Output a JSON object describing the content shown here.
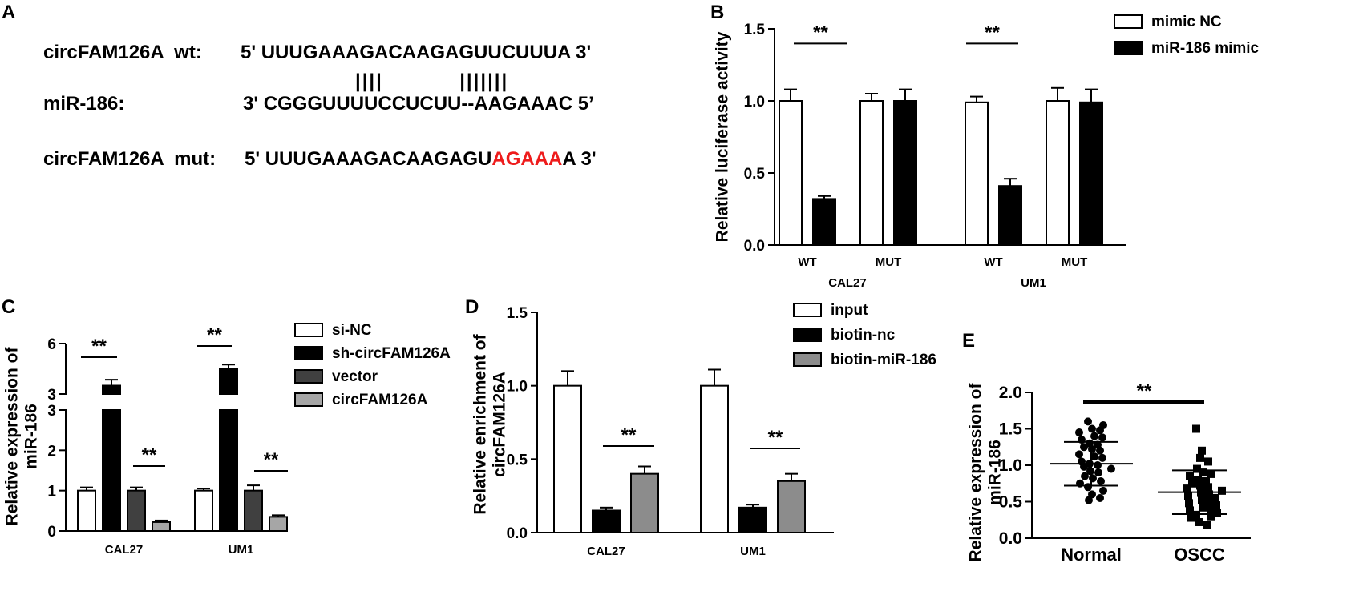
{
  "panels": {
    "a": {
      "letter": "A",
      "rows": [
        {
          "label": "circFAM126A  wt:",
          "seq_pre": "5' UUUGAAAGACAAGAGUUCUUUA 3'",
          "seq_red": "",
          "seq_post": ""
        },
        {
          "label": "miR-186:",
          "seq_pre": "3' CGGGUUUUCCUCUU--AAGAAAC 5’",
          "seq_red": "",
          "seq_post": ""
        },
        {
          "label": "circFAM126A  mut:",
          "seq_pre": "5' UUUGAAAGACAAGAGU",
          "seq_red": "AGAAA",
          "seq_post": "A 3'"
        }
      ],
      "pairing_bars": "||||           |||||||",
      "mut_color": "#ee1c1c"
    },
    "b": {
      "letter": "B"
    },
    "c": {
      "letter": "C"
    },
    "d": {
      "letter": "D"
    },
    "e": {
      "letter": "E"
    }
  },
  "chart_data": [
    {
      "id": "B",
      "type": "bar",
      "ylabel": "Relative luciferase activity",
      "ylim": [
        0,
        1.5
      ],
      "yticks": [
        "0.0",
        "0.5",
        "1.0",
        "1.5"
      ],
      "categories": [
        "WT",
        "MUT",
        "WT",
        "MUT"
      ],
      "groups": [
        "CAL27",
        "UM1"
      ],
      "series": [
        {
          "name": "mimic NC",
          "color": "#ffffff",
          "values": [
            1.0,
            1.0,
            0.99,
            1.0
          ],
          "errors": [
            0.08,
            0.05,
            0.04,
            0.09
          ]
        },
        {
          "name": "miR-186 mimic",
          "color": "#000000",
          "values": [
            0.32,
            1.0,
            0.41,
            0.99
          ],
          "errors": [
            0.02,
            0.08,
            0.05,
            0.09
          ]
        }
      ],
      "significance": [
        {
          "label": "**"
        },
        {
          "label": "**"
        }
      ],
      "legend": "top-right"
    },
    {
      "id": "C",
      "type": "bar",
      "ylabel_lines": [
        "Relative expression of",
        "miR-186"
      ],
      "yticks": [
        "0",
        "1",
        "2",
        "3",
        "3",
        "6"
      ],
      "axis_break": [
        3,
        3
      ],
      "groups": [
        "CAL27",
        "UM1"
      ],
      "series": [
        {
          "name": "si-NC",
          "color": "#ffffff",
          "values": [
            1.0,
            1.0
          ],
          "errors": [
            0.08,
            0.05
          ]
        },
        {
          "name": "sh-circFAM126A",
          "color": "#000000",
          "values": [
            3.5,
            4.5
          ],
          "errors": [
            0.35,
            0.25
          ]
        },
        {
          "name": "vector",
          "color": "#404040",
          "values": [
            1.0,
            1.0
          ],
          "errors": [
            0.08,
            0.13
          ]
        },
        {
          "name": "circFAM126A",
          "color": "#a6a6a6",
          "values": [
            0.22,
            0.35
          ],
          "errors": [
            0.04,
            0.04
          ]
        }
      ],
      "significance": [
        {
          "label": "**"
        },
        {
          "label": "**"
        },
        {
          "label": "**"
        },
        {
          "label": "**"
        }
      ],
      "legend": "right"
    },
    {
      "id": "D",
      "type": "bar",
      "ylabel_lines": [
        "Relative enrichment of",
        "circFAM126A"
      ],
      "ylim": [
        0,
        1.5
      ],
      "yticks": [
        "0.0",
        "0.5",
        "1.0",
        "1.5"
      ],
      "groups": [
        "CAL27",
        "UM1"
      ],
      "series": [
        {
          "name": "input",
          "color": "#ffffff",
          "values": [
            1.0,
            1.0
          ],
          "errors": [
            0.1,
            0.11
          ]
        },
        {
          "name": "biotin-nc",
          "color": "#000000",
          "values": [
            0.15,
            0.17
          ],
          "errors": [
            0.02,
            0.02
          ]
        },
        {
          "name": "biotin-miR-186",
          "color": "#8c8c8c",
          "values": [
            0.4,
            0.35
          ],
          "errors": [
            0.05,
            0.05
          ]
        }
      ],
      "significance": [
        {
          "label": "**"
        },
        {
          "label": "**"
        }
      ],
      "legend": "top-right"
    },
    {
      "id": "E",
      "type": "scatter",
      "ylabel_lines": [
        "Relative expression of",
        "miR-186"
      ],
      "ylim": [
        0,
        2.0
      ],
      "yticks": [
        "0.0",
        "0.5",
        "1.0",
        "1.5",
        "2.0"
      ],
      "categories": [
        "Normal",
        "OSCC"
      ],
      "groups": [
        {
          "name": "Normal",
          "marker": "circle",
          "mean": 1.02,
          "sd": 0.3,
          "values": [
            1.6,
            1.55,
            1.5,
            1.48,
            1.45,
            1.4,
            1.38,
            1.35,
            1.3,
            1.28,
            1.25,
            1.22,
            1.2,
            1.15,
            1.12,
            1.1,
            1.05,
            1.02,
            1.0,
            0.98,
            0.95,
            0.92,
            0.9,
            0.85,
            0.82,
            0.78,
            0.75,
            0.7,
            0.65,
            0.6,
            0.55,
            0.52
          ]
        },
        {
          "name": "OSCC",
          "marker": "square",
          "mean": 0.63,
          "sd": 0.3,
          "values": [
            1.5,
            1.2,
            1.1,
            1.05,
            0.95,
            0.9,
            0.88,
            0.85,
            0.8,
            0.78,
            0.75,
            0.72,
            0.7,
            0.68,
            0.65,
            0.62,
            0.6,
            0.58,
            0.55,
            0.52,
            0.5,
            0.48,
            0.45,
            0.42,
            0.4,
            0.38,
            0.35,
            0.32,
            0.3,
            0.28,
            0.22,
            0.18
          ]
        }
      ],
      "significance": [
        {
          "label": "**"
        }
      ]
    }
  ]
}
